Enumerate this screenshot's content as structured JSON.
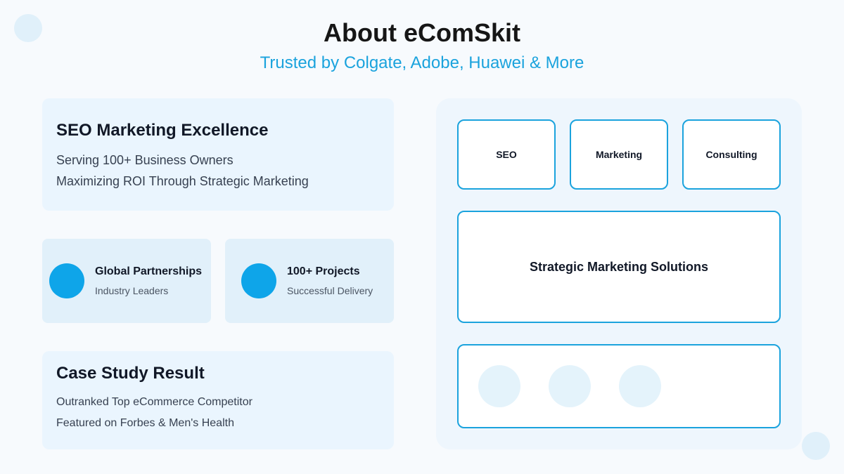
{
  "header": {
    "title": "About eComSkit",
    "subtitle": "Trusted by Colgate, Adobe, Huawei & More"
  },
  "intro_card": {
    "title": "SEO Marketing Excellence",
    "lines": [
      "Serving 100+ Business Owners",
      "Maximizing ROI Through Strategic Marketing"
    ]
  },
  "stats": [
    {
      "title": "Global Partnerships",
      "subtitle": "Industry Leaders"
    },
    {
      "title": "100+ Projects",
      "subtitle": "Successful Delivery"
    }
  ],
  "case_study": {
    "title": "Case Study Result",
    "lines": [
      "Outranked Top eCommerce Competitor",
      "Featured on Forbes & Men's Health"
    ]
  },
  "services": [
    "SEO",
    "Marketing",
    "Consulting"
  ],
  "solutions_label": "Strategic Marketing Solutions",
  "colors": {
    "accent": "#1ba3dd",
    "dot": "#0ea5e9",
    "card_bg": "#eaf5fe"
  }
}
